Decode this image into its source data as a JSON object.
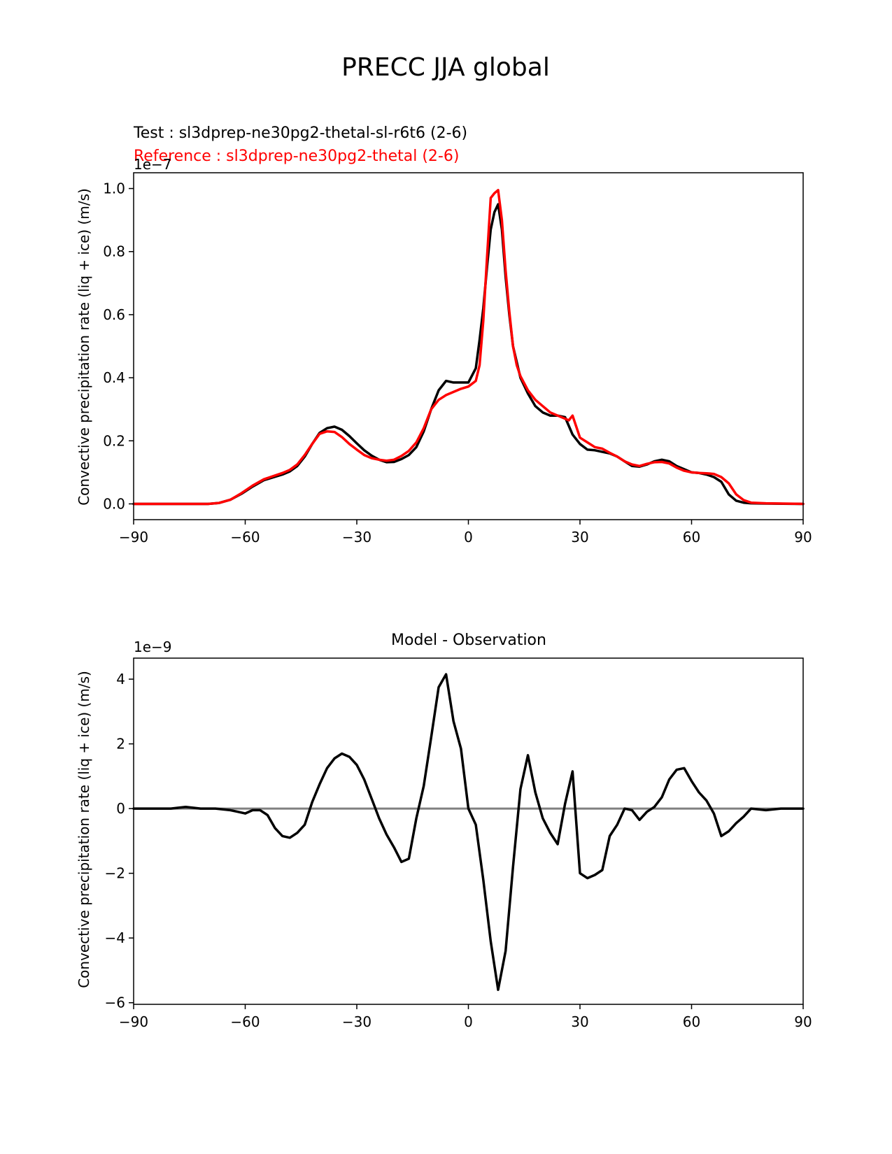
{
  "figure": {
    "title": "PRECC JJA global"
  },
  "chart_data": [
    {
      "type": "line",
      "title": "",
      "legend": [
        {
          "label": "Test : sl3dprep-ne30pg2-thetal-sl-r6t6 (2-6)",
          "color": "#000000"
        },
        {
          "label": "Reference : sl3dprep-ne30pg2-thetal (2-6)",
          "color": "#ff0000"
        }
      ],
      "legend_placement": "above-left",
      "xlabel": "",
      "ylabel": "Convective precipitation rate (liq + ice) (m/s)",
      "offset_text": "1e−7",
      "xlim": [
        -90,
        90
      ],
      "ylim": [
        -0.05,
        1.05
      ],
      "xticks": [
        -90,
        -60,
        -30,
        0,
        30,
        60,
        90
      ],
      "xtick_labels": [
        "−90",
        "−60",
        "−30",
        "0",
        "30",
        "60",
        "90"
      ],
      "yticks": [
        0.0,
        0.2,
        0.4,
        0.6,
        0.8,
        1.0
      ],
      "ytick_labels": [
        "0.0",
        "0.2",
        "0.4",
        "0.6",
        "0.8",
        "1.0"
      ],
      "grid": false,
      "series": [
        {
          "name": "Test : sl3dprep-ne30pg2-thetal-sl-r6t6 (2-6)",
          "color": "#000000",
          "x": [
            -90,
            -80,
            -75,
            -70,
            -67,
            -64,
            -61,
            -58,
            -55,
            -52,
            -50,
            -48,
            -46,
            -44,
            -42,
            -40,
            -38,
            -36,
            -34,
            -32,
            -30,
            -28,
            -26,
            -24,
            -22,
            -20,
            -18,
            -16,
            -14,
            -12,
            -10,
            -8,
            -6,
            -4,
            -2,
            0,
            2,
            3,
            4,
            5,
            6,
            7,
            8,
            9,
            10,
            11,
            12,
            13,
            14,
            16,
            18,
            20,
            22,
            24,
            26,
            28,
            30,
            32,
            34,
            36,
            38,
            40,
            42,
            44,
            46,
            48,
            50,
            52,
            54,
            56,
            58,
            60,
            62,
            64,
            66,
            68,
            70,
            72,
            74,
            76,
            80,
            90
          ],
          "y": [
            0,
            0,
            0,
            0,
            0.003,
            0.013,
            0.032,
            0.055,
            0.075,
            0.086,
            0.093,
            0.103,
            0.12,
            0.15,
            0.19,
            0.225,
            0.24,
            0.245,
            0.235,
            0.215,
            0.192,
            0.17,
            0.153,
            0.14,
            0.132,
            0.133,
            0.142,
            0.155,
            0.18,
            0.23,
            0.3,
            0.36,
            0.39,
            0.385,
            0.385,
            0.385,
            0.43,
            0.52,
            0.62,
            0.75,
            0.87,
            0.925,
            0.95,
            0.87,
            0.72,
            0.6,
            0.5,
            0.45,
            0.4,
            0.35,
            0.31,
            0.29,
            0.28,
            0.28,
            0.275,
            0.22,
            0.19,
            0.172,
            0.17,
            0.165,
            0.16,
            0.15,
            0.135,
            0.12,
            0.118,
            0.125,
            0.135,
            0.14,
            0.135,
            0.12,
            0.11,
            0.1,
            0.098,
            0.093,
            0.085,
            0.07,
            0.03,
            0.01,
            0.004,
            0.002,
            0.001,
            0
          ]
        },
        {
          "name": "Reference : sl3dprep-ne30pg2-thetal (2-6)",
          "color": "#ff0000",
          "x": [
            -90,
            -80,
            -75,
            -70,
            -67,
            -64,
            -61,
            -58,
            -55,
            -52,
            -50,
            -48,
            -46,
            -44,
            -42,
            -40,
            -38,
            -36,
            -34,
            -32,
            -30,
            -28,
            -26,
            -24,
            -22,
            -20,
            -18,
            -16,
            -14,
            -12,
            -10,
            -8,
            -6,
            -4,
            -2,
            0,
            2,
            3,
            4,
            5,
            6,
            7,
            8,
            9,
            10,
            11,
            12,
            13,
            14,
            16,
            18,
            20,
            22,
            24,
            26,
            27,
            28,
            30,
            32,
            34,
            36,
            38,
            40,
            42,
            44,
            46,
            48,
            50,
            52,
            54,
            56,
            58,
            60,
            62,
            64,
            66,
            68,
            70,
            72,
            74,
            76,
            80,
            90
          ],
          "y": [
            0,
            0,
            0,
            0,
            0.003,
            0.013,
            0.034,
            0.058,
            0.078,
            0.09,
            0.098,
            0.108,
            0.125,
            0.155,
            0.19,
            0.222,
            0.23,
            0.228,
            0.212,
            0.19,
            0.172,
            0.155,
            0.145,
            0.14,
            0.137,
            0.14,
            0.152,
            0.168,
            0.195,
            0.24,
            0.3,
            0.33,
            0.345,
            0.355,
            0.365,
            0.372,
            0.39,
            0.44,
            0.58,
            0.78,
            0.97,
            0.985,
            0.995,
            0.9,
            0.74,
            0.61,
            0.5,
            0.44,
            0.405,
            0.36,
            0.33,
            0.31,
            0.29,
            0.28,
            0.27,
            0.265,
            0.28,
            0.21,
            0.195,
            0.18,
            0.175,
            0.162,
            0.15,
            0.135,
            0.125,
            0.12,
            0.127,
            0.132,
            0.133,
            0.128,
            0.115,
            0.105,
            0.1,
            0.098,
            0.097,
            0.095,
            0.085,
            0.065,
            0.03,
            0.012,
            0.004,
            0.002,
            0
          ]
        }
      ]
    },
    {
      "type": "line",
      "title": "Model - Observation",
      "xlabel": "",
      "ylabel": "Convective precipitation rate (liq + ice) (m/s)",
      "offset_text": "1e−9",
      "xlim": [
        -90,
        90
      ],
      "ylim": [
        -6.05,
        4.65
      ],
      "xticks": [
        -90,
        -60,
        -30,
        0,
        30,
        60,
        90
      ],
      "xtick_labels": [
        "−90",
        "−60",
        "−30",
        "0",
        "30",
        "60",
        "90"
      ],
      "yticks": [
        -6,
        -4,
        -2,
        0,
        2,
        4
      ],
      "ytick_labels": [
        "−6",
        "−4",
        "−2",
        "0",
        "2",
        "4"
      ],
      "grid": false,
      "zero_line": {
        "y": 0,
        "color": "#808080"
      },
      "series": [
        {
          "name": "",
          "color": "#000000",
          "x": [
            -90,
            -80,
            -76,
            -72,
            -68,
            -64,
            -62,
            -60,
            -58,
            -56,
            -54,
            -52,
            -50,
            -48,
            -46,
            -44,
            -42,
            -40,
            -38,
            -36,
            -34,
            -32,
            -30,
            -28,
            -26,
            -24,
            -22,
            -20,
            -18,
            -16,
            -14,
            -12,
            -10,
            -8,
            -6,
            -4,
            -2,
            0,
            2,
            4,
            6,
            8,
            10,
            12,
            14,
            16,
            18,
            20,
            22,
            24,
            26,
            28,
            30,
            32,
            34,
            36,
            38,
            40,
            42,
            44,
            46,
            48,
            50,
            52,
            54,
            56,
            58,
            60,
            62,
            64,
            66,
            68,
            70,
            72,
            74,
            76,
            80,
            84,
            86,
            90
          ],
          "y": [
            0,
            0,
            0.05,
            0,
            0,
            -0.05,
            -0.1,
            -0.15,
            -0.05,
            -0.05,
            -0.2,
            -0.6,
            -0.85,
            -0.9,
            -0.75,
            -0.5,
            0.2,
            0.75,
            1.25,
            1.55,
            1.7,
            1.6,
            1.35,
            0.9,
            0.3,
            -0.3,
            -0.8,
            -1.2,
            -1.65,
            -1.55,
            -0.3,
            0.7,
            2.2,
            3.75,
            4.15,
            2.7,
            1.85,
            0.0,
            -0.5,
            -2.2,
            -4.1,
            -5.6,
            -4.4,
            -1.8,
            0.6,
            1.65,
            0.5,
            -0.3,
            -0.75,
            -1.1,
            0.15,
            1.15,
            -2.0,
            -2.15,
            -2.05,
            -1.9,
            -0.85,
            -0.5,
            0.0,
            -0.05,
            -0.35,
            -0.1,
            0.05,
            0.35,
            0.9,
            1.2,
            1.25,
            0.85,
            0.5,
            0.25,
            -0.15,
            -0.85,
            -0.7,
            -0.45,
            -0.25,
            0,
            -0.05,
            0,
            0,
            0
          ]
        }
      ]
    }
  ]
}
